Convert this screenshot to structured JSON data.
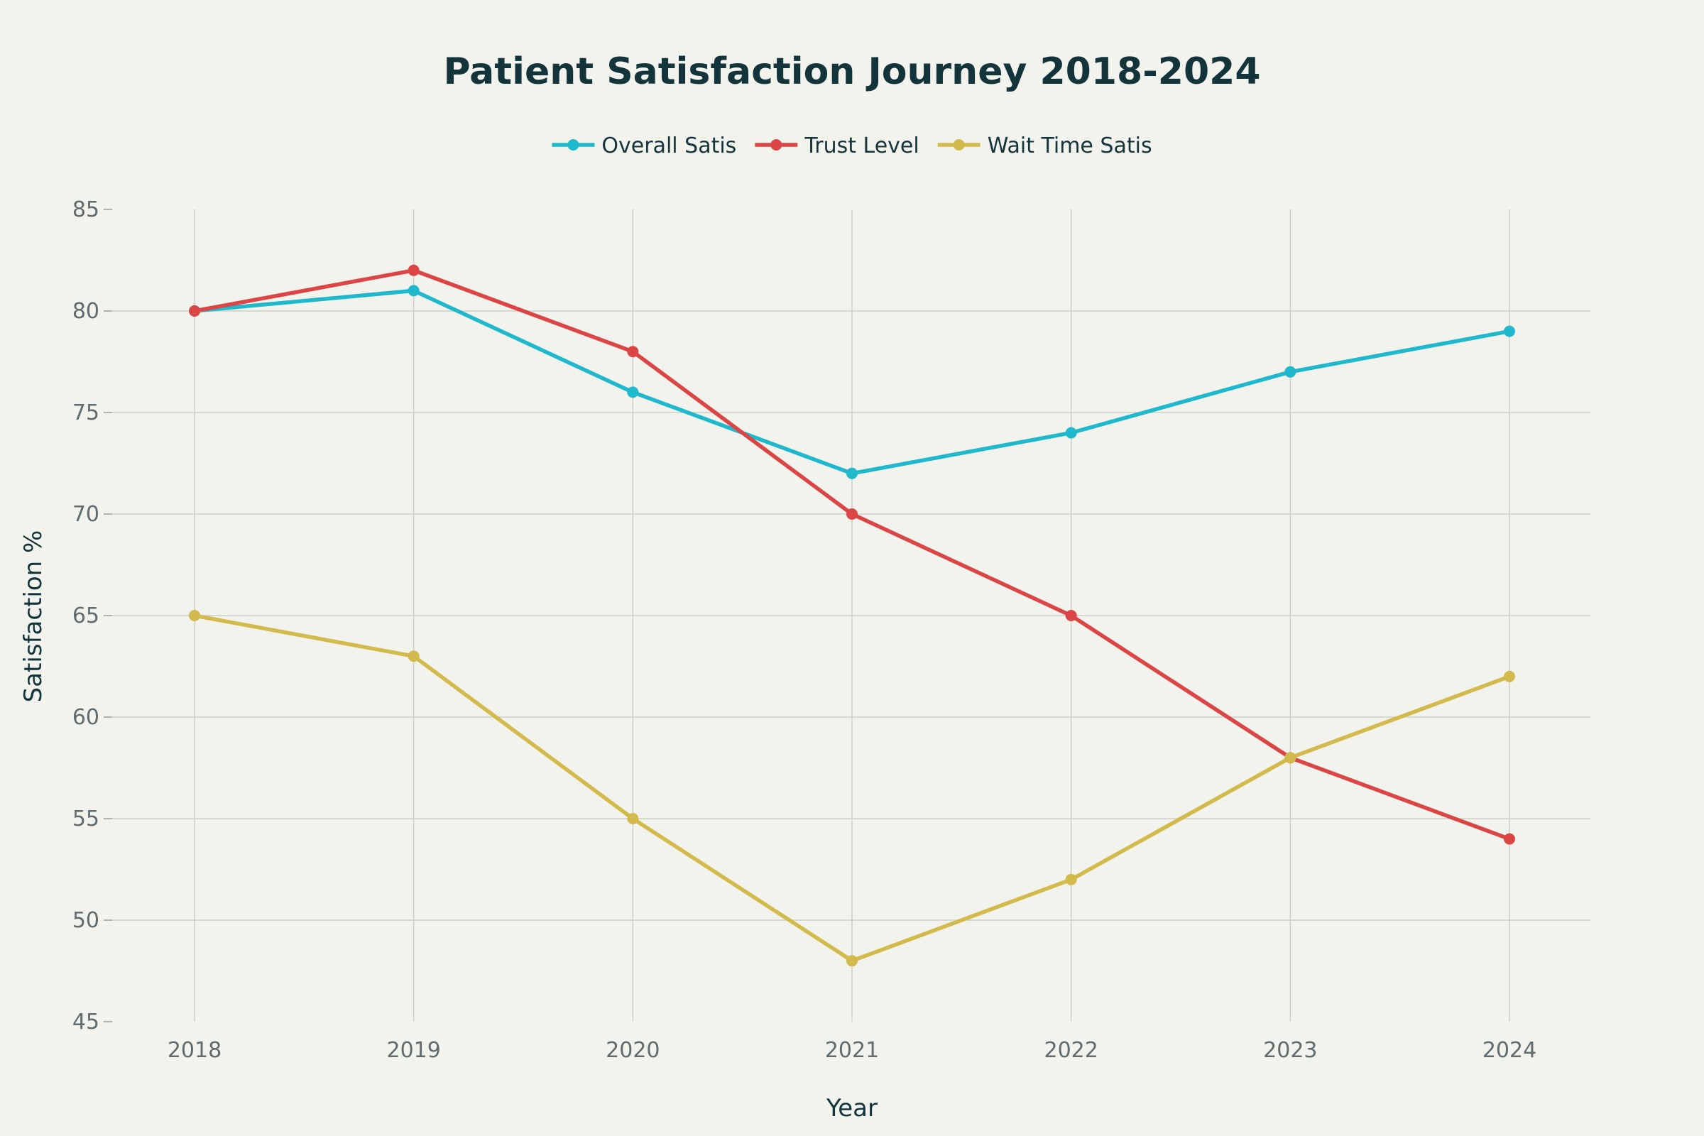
{
  "chart_data": {
    "type": "line",
    "title": "Patient Satisfaction Journey 2018-2024",
    "xlabel": "Year",
    "ylabel": "Satisfaction %",
    "categories": [
      "2018",
      "2019",
      "2020",
      "2021",
      "2022",
      "2023",
      "2024"
    ],
    "ylim": [
      45,
      85
    ],
    "yticks": [
      45,
      50,
      55,
      60,
      65,
      70,
      75,
      80,
      85
    ],
    "grid": true,
    "legend_position": "top-center",
    "series": [
      {
        "name": "Overall Satis",
        "color": "#1FB8CD",
        "values": [
          80,
          81,
          76,
          72,
          74,
          77,
          79
        ]
      },
      {
        "name": "Trust Level",
        "color": "#DB4545",
        "values": [
          80,
          82,
          78,
          70,
          65,
          58,
          54
        ]
      },
      {
        "name": "Wait Time Satis",
        "color": "#D2BA4C",
        "values": [
          65,
          63,
          55,
          48,
          52,
          58,
          62
        ]
      }
    ]
  }
}
